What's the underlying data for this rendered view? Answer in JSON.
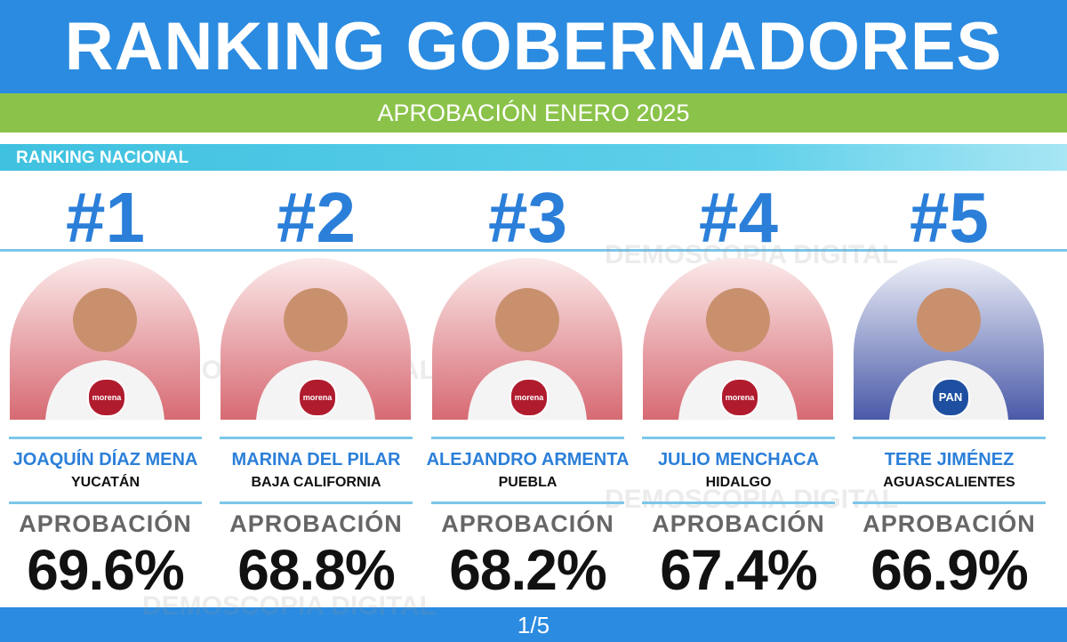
{
  "header": {
    "title": "RANKING GOBERNADORES",
    "subtitle": "APROBACIÓN ENERO 2025"
  },
  "section": "RANKING NACIONAL",
  "watermark": "DEMOSCOPIA DIGITAL",
  "cards": [
    {
      "rank": "#1",
      "party": "morena",
      "name": "JOAQUÍN DÍAZ MENA",
      "state": "YUCATÁN",
      "label": "APROBACIÓN",
      "value": "69.6%"
    },
    {
      "rank": "#2",
      "party": "morena",
      "name": "MARINA DEL PILAR",
      "state": "BAJA CALIFORNIA",
      "label": "APROBACIÓN",
      "value": "68.8%"
    },
    {
      "rank": "#3",
      "party": "morena",
      "name": "ALEJANDRO ARMENTA",
      "state": "PUEBLA",
      "label": "APROBACIÓN",
      "value": "68.2%"
    },
    {
      "rank": "#4",
      "party": "morena",
      "name": "JULIO MENCHACA",
      "state": "HIDALGO",
      "label": "APROBACIÓN",
      "value": "67.4%"
    },
    {
      "rank": "#5",
      "party": "PAN",
      "name": "TERE JIMÉNEZ",
      "state": "AGUASCALIENTES",
      "label": "APROBACIÓN",
      "value": "66.9%"
    }
  ],
  "footer": {
    "page": "1/5"
  }
}
